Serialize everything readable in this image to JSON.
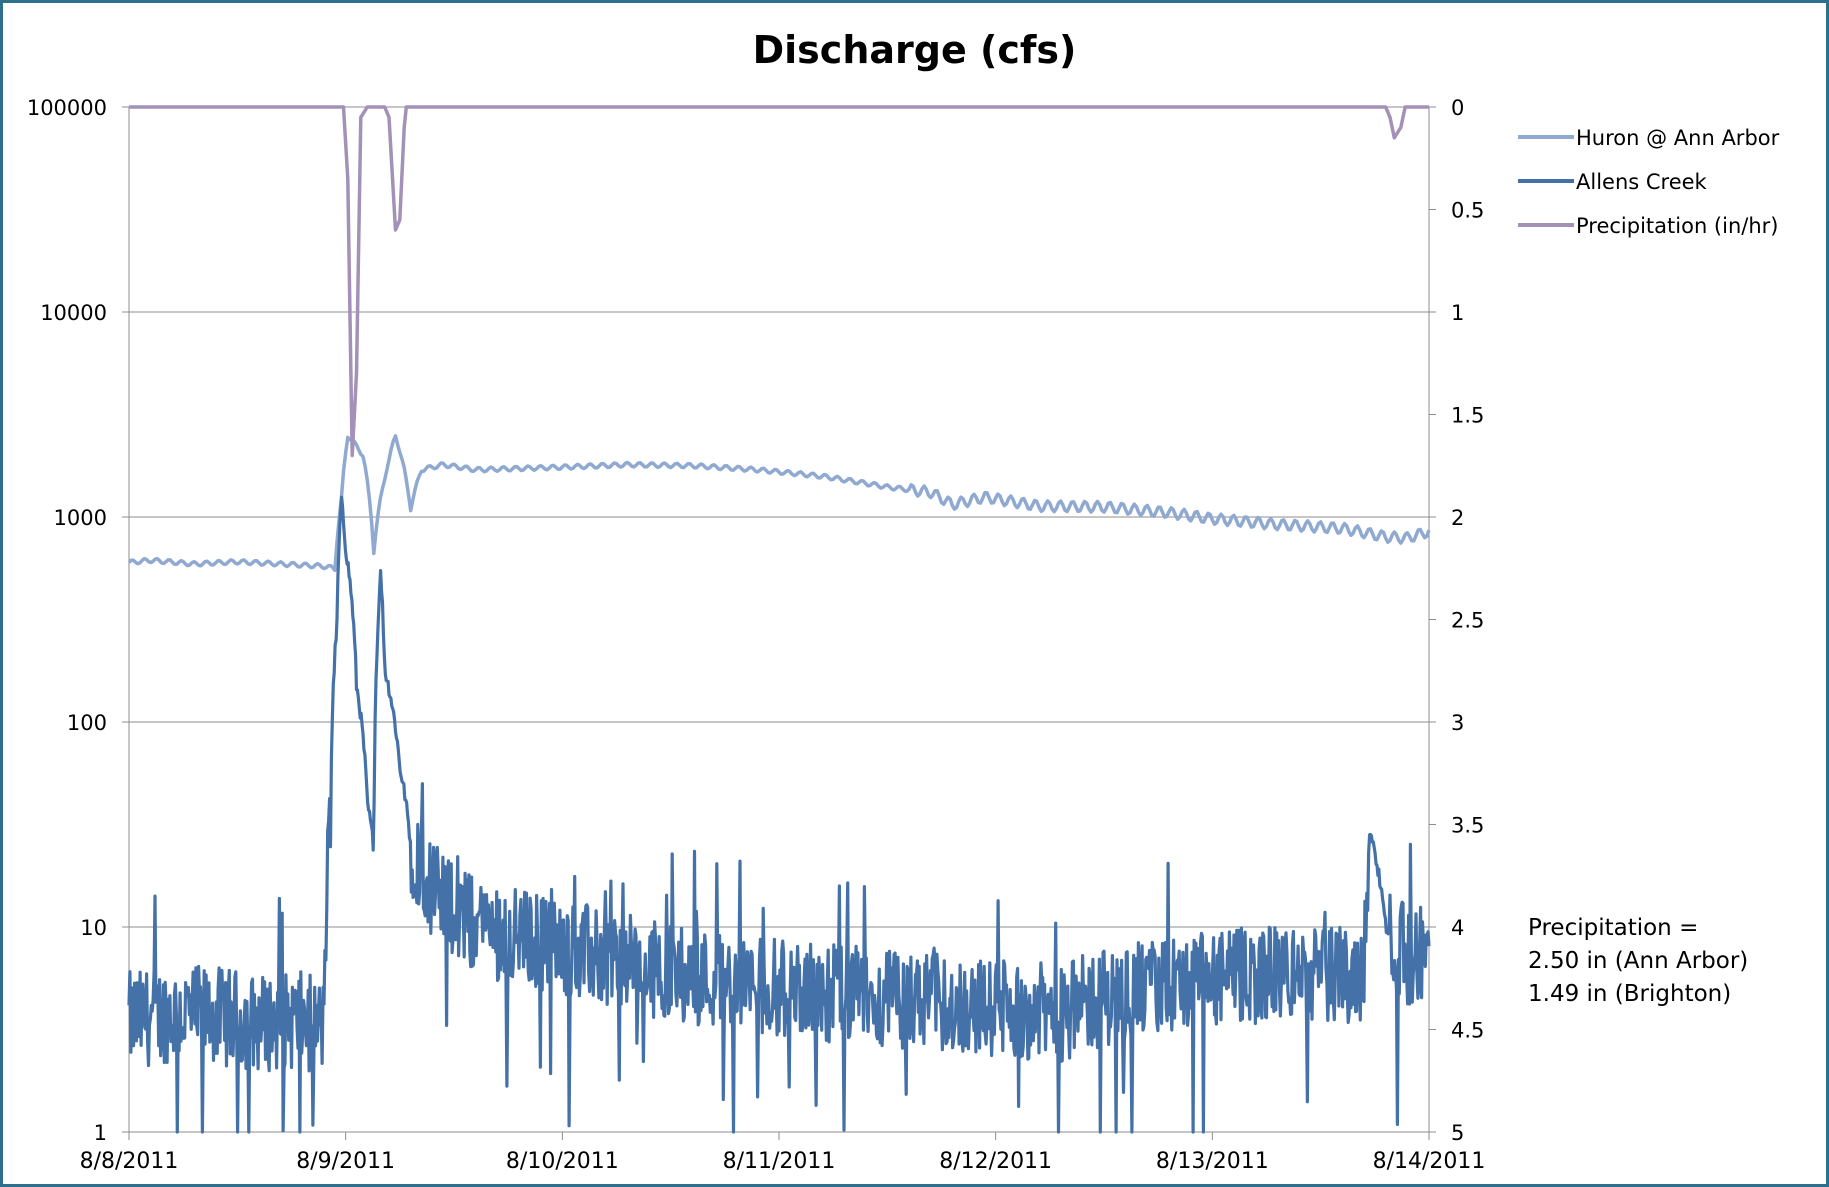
{
  "chart_data": {
    "type": "line",
    "title": "Discharge (cfs)",
    "y_left": {
      "scale": "log",
      "range": [
        1,
        100000
      ],
      "ticks": [
        "100000",
        "10000",
        "1000",
        "100",
        "10",
        "1"
      ]
    },
    "y_right": {
      "scale": "linear",
      "reversed": true,
      "range": [
        0,
        5
      ],
      "ticks": [
        "0",
        "0.5",
        "1",
        "1.5",
        "2",
        "2.5",
        "3",
        "3.5",
        "4",
        "4.5",
        "5"
      ]
    },
    "x_ticks": [
      "8/8/2011",
      "8/9/2011",
      "8/10/2011",
      "8/11/2011",
      "8/12/2011",
      "8/13/2011",
      "8/14/2011"
    ],
    "x_range_days": [
      0,
      6
    ],
    "grid": "horizontal",
    "legend_position": "top-right",
    "series": [
      {
        "name": "Huron @ Ann Arbor",
        "axis": "left",
        "color": "#8fa9d1",
        "points": [
          [
            0,
            600
          ],
          [
            0.1,
            615
          ],
          [
            0.3,
            590
          ],
          [
            0.5,
            605
          ],
          [
            0.7,
            590
          ],
          [
            0.9,
            575
          ],
          [
            0.95,
            560
          ],
          [
            0.98,
            1200
          ],
          [
            1.01,
            2500
          ],
          [
            1.08,
            2000
          ],
          [
            1.13,
            680
          ],
          [
            1.2,
            1900
          ],
          [
            1.23,
            2500
          ],
          [
            1.3,
            1100
          ],
          [
            1.35,
            1700
          ],
          [
            1.45,
            1800
          ],
          [
            1.6,
            1700
          ],
          [
            2,
            1750
          ],
          [
            2.3,
            1800
          ],
          [
            2.6,
            1780
          ],
          [
            2.9,
            1700
          ],
          [
            3.2,
            1580
          ],
          [
            3.5,
            1400
          ],
          [
            3.7,
            1320
          ],
          [
            3.8,
            1150
          ],
          [
            3.95,
            1250
          ],
          [
            4.2,
            1130
          ],
          [
            4.5,
            1120
          ],
          [
            4.8,
            1050
          ],
          [
            5,
            980
          ],
          [
            5.3,
            920
          ],
          [
            5.6,
            880
          ],
          [
            5.8,
            800
          ],
          [
            5.9,
            790
          ],
          [
            6,
            850
          ]
        ]
      },
      {
        "name": "Allens Creek",
        "axis": "left",
        "color": "#4472a8",
        "points": [
          [
            0,
            3.5
          ],
          [
            0.2,
            3.8
          ],
          [
            0.4,
            3.7
          ],
          [
            0.6,
            3.4
          ],
          [
            0.8,
            3.5
          ],
          [
            0.9,
            3.2
          ],
          [
            0.93,
            30
          ],
          [
            0.96,
            300
          ],
          [
            0.98,
            1200
          ],
          [
            1,
            700
          ],
          [
            1.05,
            150
          ],
          [
            1.1,
            40
          ],
          [
            1.13,
            24
          ],
          [
            1.15,
            300
          ],
          [
            1.16,
            550
          ],
          [
            1.18,
            180
          ],
          [
            1.25,
            60
          ],
          [
            1.3,
            25
          ],
          [
            1.4,
            15
          ],
          [
            1.6,
            10
          ],
          [
            1.8,
            9
          ],
          [
            2,
            8
          ],
          [
            2.2,
            7
          ],
          [
            2.5,
            6
          ],
          [
            3,
            5
          ],
          [
            3.5,
            4.5
          ],
          [
            4,
            4
          ],
          [
            4.3,
            3.8
          ],
          [
            4.4,
            4.2
          ],
          [
            4.6,
            4.8
          ],
          [
            5,
            5.5
          ],
          [
            5.3,
            6
          ],
          [
            5.5,
            5.8
          ],
          [
            5.7,
            6
          ],
          [
            5.73,
            30
          ],
          [
            5.76,
            20
          ],
          [
            5.8,
            10
          ],
          [
            5.9,
            7
          ],
          [
            6,
            8
          ]
        ]
      },
      {
        "name": "Precipitation (in/hr)",
        "axis": "right",
        "color": "#a391b8",
        "points": [
          [
            0,
            0
          ],
          [
            0.99,
            0
          ],
          [
            1.01,
            0.35
          ],
          [
            1.03,
            1.7
          ],
          [
            1.05,
            1.3
          ],
          [
            1.07,
            0.05
          ],
          [
            1.1,
            0
          ],
          [
            1.18,
            0
          ],
          [
            1.2,
            0.05
          ],
          [
            1.23,
            0.6
          ],
          [
            1.25,
            0.55
          ],
          [
            1.27,
            0.1
          ],
          [
            1.28,
            0
          ],
          [
            5.8,
            0
          ],
          [
            5.82,
            0.05
          ],
          [
            5.84,
            0.15
          ],
          [
            5.87,
            0.1
          ],
          [
            5.89,
            0
          ],
          [
            6,
            0
          ]
        ]
      }
    ]
  },
  "annotation": {
    "line1": "Precipitation =",
    "line2": "2.50 in (Ann Arbor)",
    "line3": "1.49 in (Brighton)"
  }
}
